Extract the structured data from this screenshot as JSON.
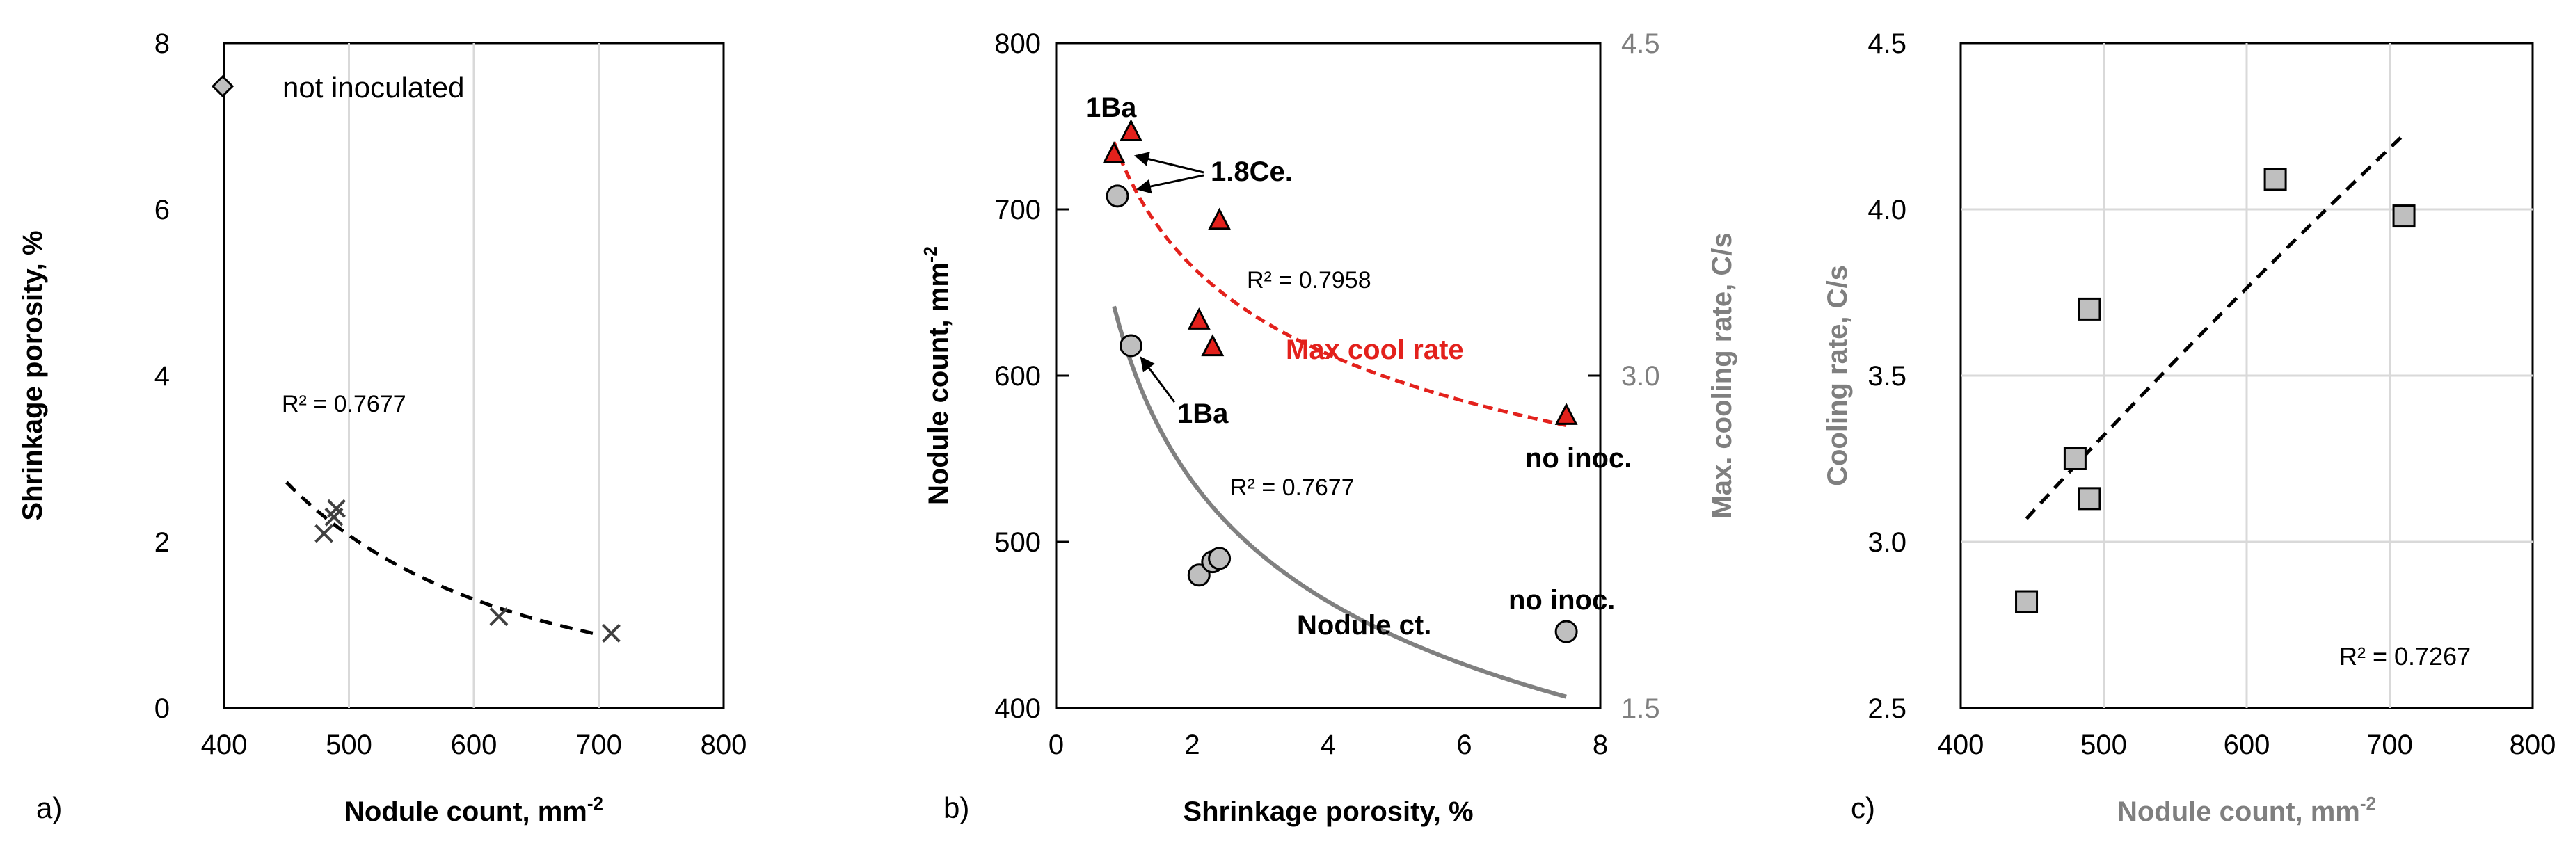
{
  "panel_labels": [
    "a)",
    "b)",
    "c)"
  ],
  "colors": {
    "red": "#e3211c",
    "gray_marker": "#bfbfbf",
    "gray_line": "#808080",
    "gray_axis": "#7f7f7f"
  },
  "chart_data": [
    {
      "type": "scatter",
      "panel": "a)",
      "xlabel": "Nodule count, mm",
      "xlabel_sup": "-2",
      "ylabel": "Shrinkage porosity, %",
      "xlim": [
        400,
        800
      ],
      "ylim": [
        0,
        8
      ],
      "xticks": [
        "400",
        "500",
        "600",
        "700",
        "800"
      ],
      "yticks": [
        "0",
        "2",
        "4",
        "6",
        "8"
      ],
      "grid": "vertical",
      "legend": {
        "placement": "top-left",
        "entries": [
          "not inoculated"
        ]
      },
      "series": [
        {
          "name": "not inoculated",
          "marker": "x",
          "x": [
            480,
            488,
            490,
            620,
            710
          ],
          "y": [
            2.1,
            2.3,
            2.4,
            1.1,
            0.9
          ]
        }
      ],
      "trendline": {
        "type": "power",
        "x_range": [
          450,
          700
        ],
        "label": "R² = 0.7677"
      }
    },
    {
      "type": "scatter",
      "panel": "b)",
      "xlabel": "Shrinkage porosity, %",
      "ylabel": "Nodule count, mm",
      "ylabel_sup": "-2",
      "y2label": "Max. cooling rate, C/s",
      "xlim": [
        0,
        8
      ],
      "ylim": [
        400,
        800
      ],
      "y2lim": [
        1.5,
        4.5
      ],
      "xticks": [
        "0",
        "2",
        "4",
        "6",
        "8"
      ],
      "yticks": [
        "400",
        "500",
        "600",
        "700",
        "800"
      ],
      "y2ticks": [
        "1.5",
        "3.0",
        "4.5"
      ],
      "series": [
        {
          "axis": "left",
          "marker": "circle",
          "x": [
            0.9,
            1.1,
            2.1,
            2.3,
            2.4,
            7.5
          ],
          "y": [
            708,
            618,
            480,
            488,
            490,
            446
          ]
        },
        {
          "axis": "right",
          "marker": "triangle",
          "x": [
            0.85,
            1.1,
            2.1,
            2.3,
            2.4,
            7.5
          ],
          "y": [
            4.0,
            4.1,
            3.25,
            3.13,
            3.7,
            2.82
          ]
        }
      ],
      "trendlines": [
        {
          "axis": "left",
          "x_range": [
            0.85,
            7.5
          ],
          "label": "R² = 0.7677",
          "name_label": "Nodule ct."
        },
        {
          "axis": "right",
          "x_range": [
            0.85,
            7.5
          ],
          "label": "R² = 0.7958",
          "name_label": "Max cool rate"
        }
      ],
      "annotations": [
        "1Ba",
        "1.8Ce.",
        "1Ba",
        "no inoc.",
        "no inoc."
      ]
    },
    {
      "type": "scatter",
      "panel": "c)",
      "xlabel": "Nodule count, mm",
      "xlabel_sup": "-2",
      "ylabel": "Cooling rate, C/s",
      "xlim": [
        400,
        800
      ],
      "ylim": [
        2.5,
        4.5
      ],
      "xticks": [
        "400",
        "500",
        "600",
        "700",
        "800"
      ],
      "yticks": [
        "2.5",
        "3.0",
        "3.5",
        "4.0",
        "4.5"
      ],
      "series": [
        {
          "marker": "square",
          "x": [
            446,
            480,
            490,
            490,
            620,
            710
          ],
          "y": [
            2.82,
            3.25,
            3.13,
            3.7,
            4.09,
            3.98
          ]
        }
      ],
      "trendline": {
        "type": "power",
        "x_range": [
          446,
          710
        ],
        "label": "R² = 0.7267"
      }
    }
  ]
}
